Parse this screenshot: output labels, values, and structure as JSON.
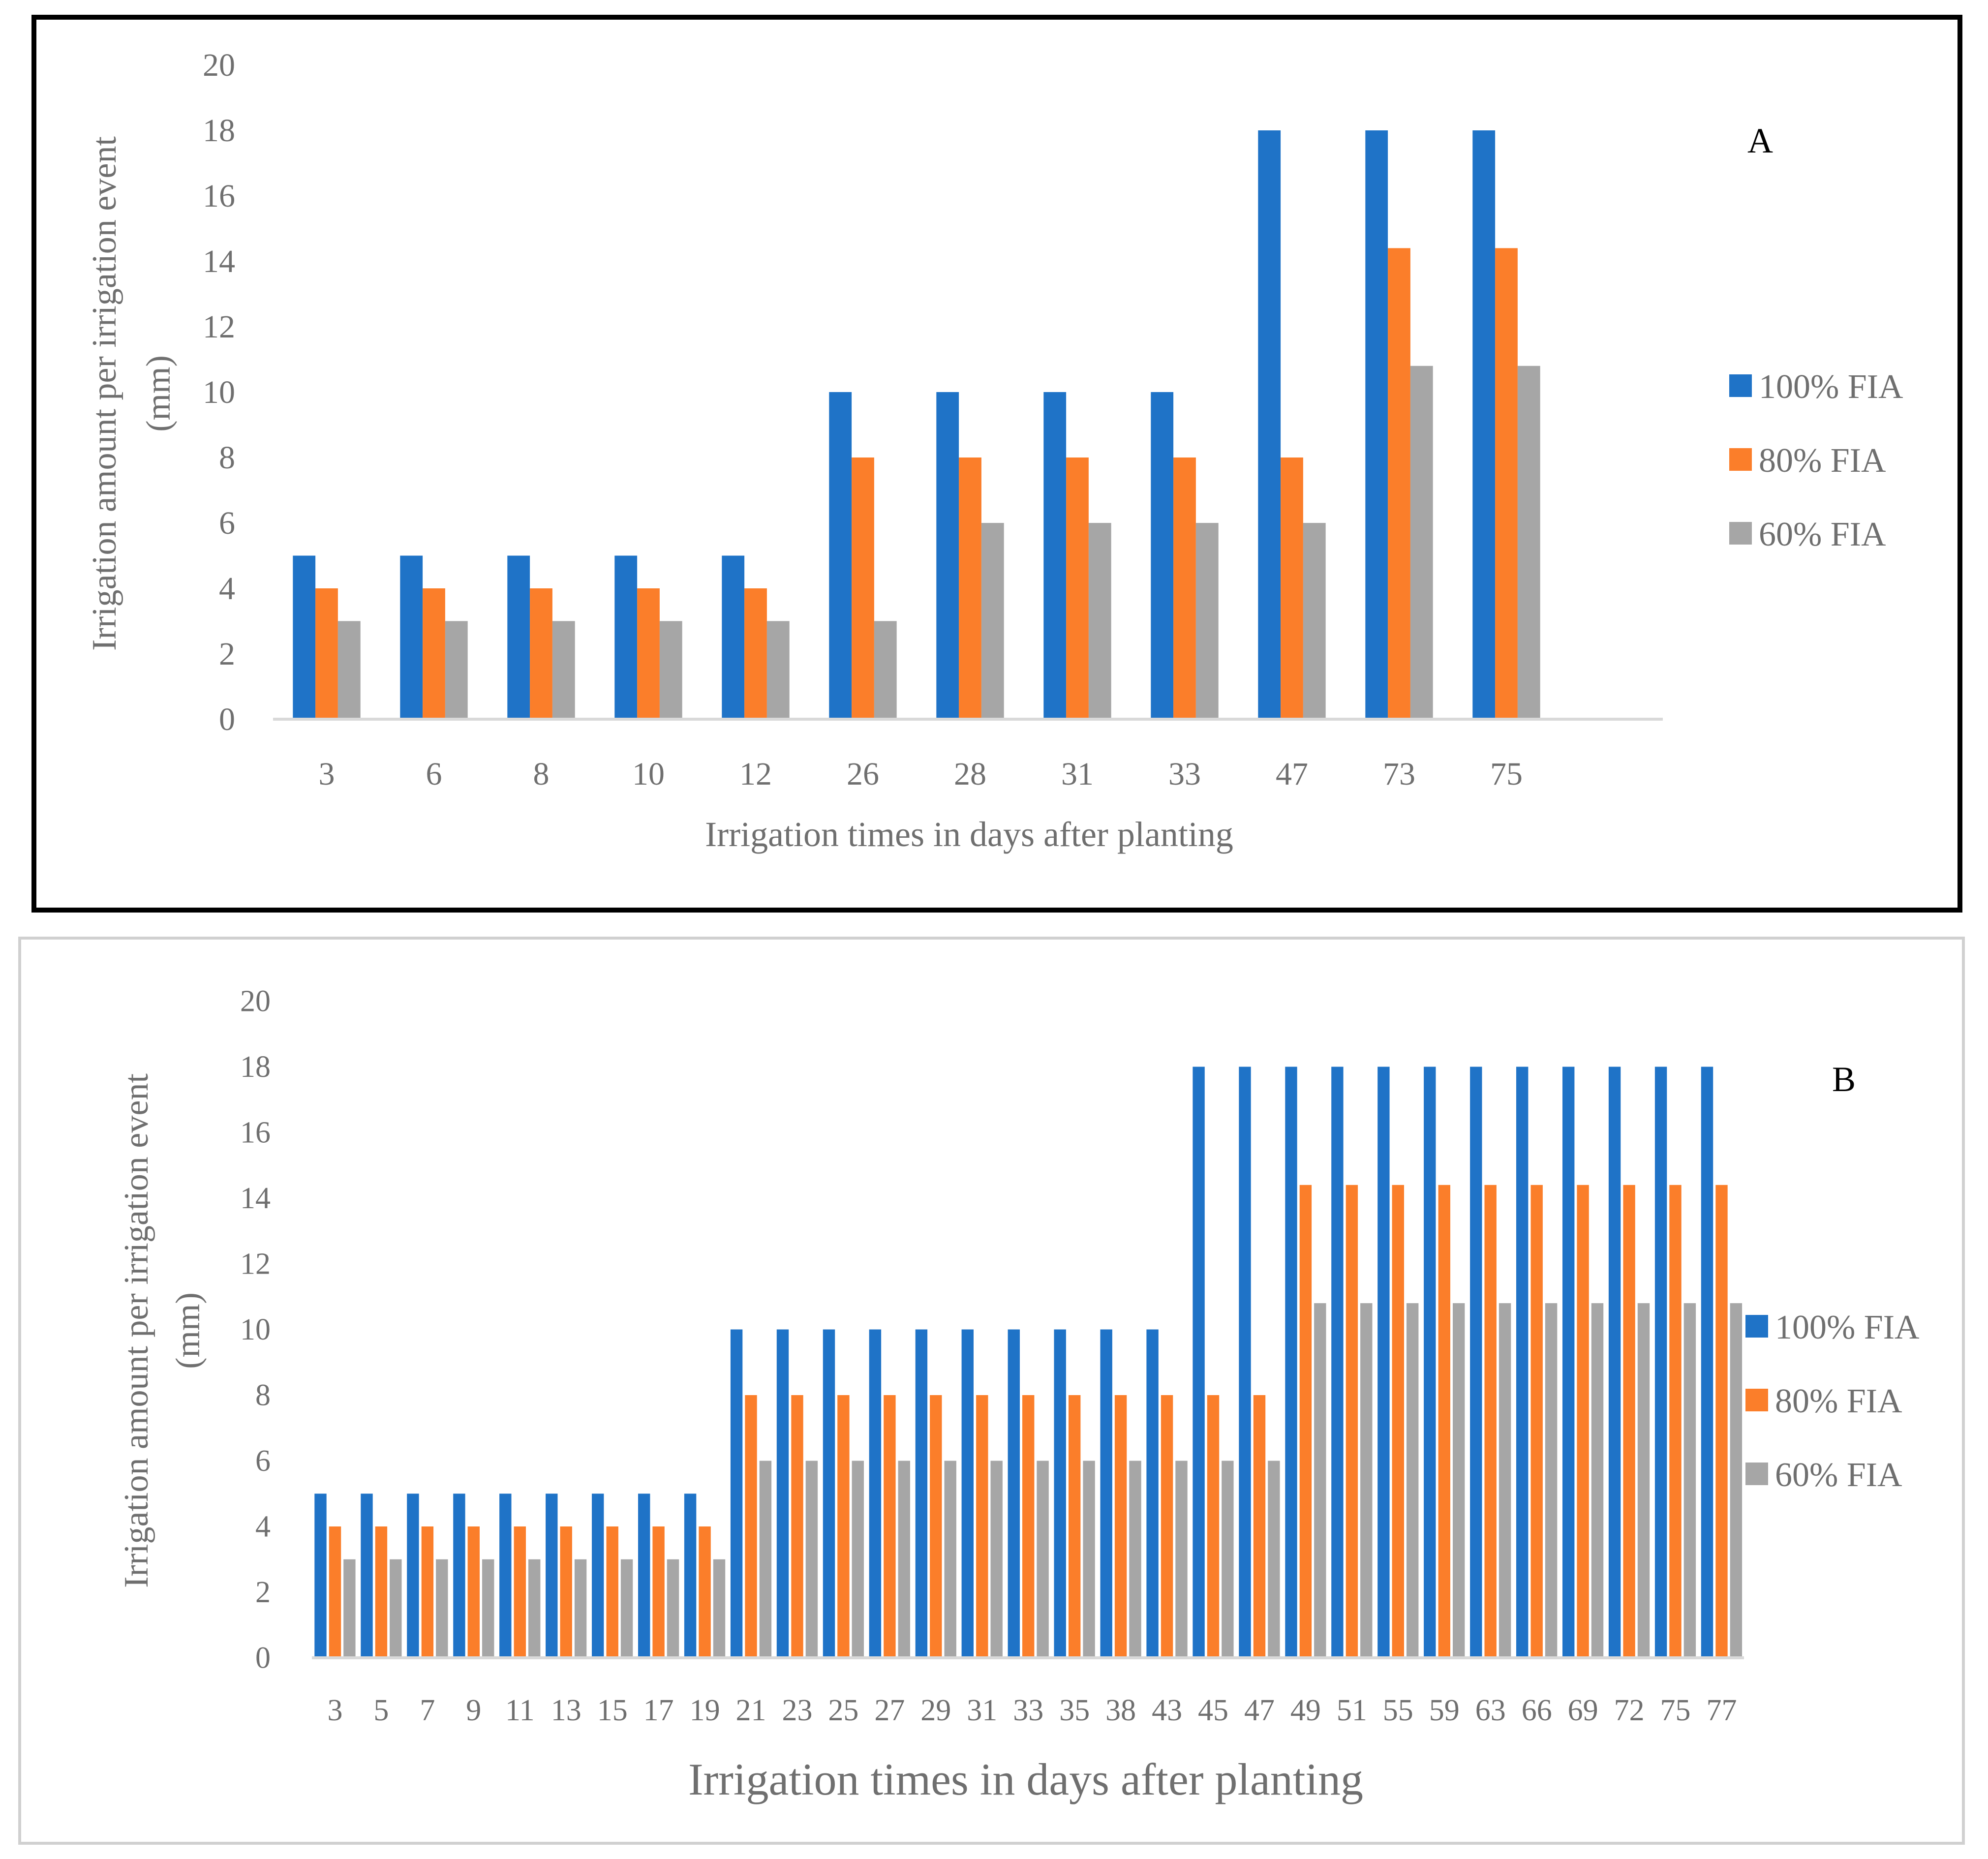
{
  "colors": {
    "series": [
      "#1f73c7",
      "#fb7e2a",
      "#a6a6a6"
    ],
    "axis": "#d9d9d9",
    "text": "#6f6f6f",
    "panelA_border": "#000000",
    "panelB_border": "#d0d0d0"
  },
  "chart_data": [
    {
      "type": "bar",
      "panel_label": "A",
      "title": "",
      "xlabel": "Irrigation times in days after planting",
      "ylabel": "Irrigation amount per irrigation event (mm)",
      "ylim": [
        0,
        20
      ],
      "yticks": [
        0,
        2,
        4,
        6,
        8,
        10,
        12,
        14,
        16,
        18,
        20
      ],
      "grid": false,
      "legend_position": "right",
      "categories": [
        "3",
        "6",
        "8",
        "10",
        "12",
        "26",
        "28",
        "31",
        "33",
        "47",
        "73",
        "75"
      ],
      "series": [
        {
          "name": "100% FIA",
          "values": [
            5,
            5,
            5,
            5,
            5,
            10,
            10,
            10,
            10,
            18,
            18,
            18
          ]
        },
        {
          "name": "80% FIA",
          "values": [
            4,
            4,
            4,
            4,
            4,
            8,
            8,
            8,
            8,
            8,
            14.4,
            14.4
          ]
        },
        {
          "name": "60% FIA",
          "values": [
            3,
            3,
            3,
            3,
            3,
            3,
            6,
            6,
            6,
            6,
            10.8,
            10.8
          ]
        }
      ]
    },
    {
      "type": "bar",
      "panel_label": "B",
      "title": "",
      "xlabel": "Irrigation times in days after planting",
      "ylabel": "Irrigation amount per irrigation event (mm)",
      "ylim": [
        0,
        20
      ],
      "yticks": [
        0,
        2,
        4,
        6,
        8,
        10,
        12,
        14,
        16,
        18,
        20
      ],
      "grid": false,
      "legend_position": "right",
      "categories": [
        "3",
        "5",
        "7",
        "9",
        "11",
        "13",
        "15",
        "17",
        "19",
        "21",
        "23",
        "25",
        "27",
        "29",
        "31",
        "33",
        "35",
        "38",
        "43",
        "45",
        "47",
        "49",
        "51",
        "55",
        "59",
        "63",
        "66",
        "69",
        "72",
        "75",
        "77"
      ],
      "series": [
        {
          "name": "100% FIA",
          "values": [
            5,
            5,
            5,
            5,
            5,
            5,
            5,
            5,
            5,
            10,
            10,
            10,
            10,
            10,
            10,
            10,
            10,
            10,
            10,
            18,
            18,
            18,
            18,
            18,
            18,
            18,
            18,
            18,
            18,
            18,
            18
          ]
        },
        {
          "name": "80% FIA",
          "values": [
            4,
            4,
            4,
            4,
            4,
            4,
            4,
            4,
            4,
            8,
            8,
            8,
            8,
            8,
            8,
            8,
            8,
            8,
            8,
            8,
            8,
            14.4,
            14.4,
            14.4,
            14.4,
            14.4,
            14.4,
            14.4,
            14.4,
            14.4,
            14.4
          ]
        },
        {
          "name": "60% FIA",
          "values": [
            3,
            3,
            3,
            3,
            3,
            3,
            3,
            3,
            3,
            6,
            6,
            6,
            6,
            6,
            6,
            6,
            6,
            6,
            6,
            6,
            6,
            10.8,
            10.8,
            10.8,
            10.8,
            10.8,
            10.8,
            10.8,
            10.8,
            10.8,
            10.8
          ]
        }
      ]
    }
  ]
}
